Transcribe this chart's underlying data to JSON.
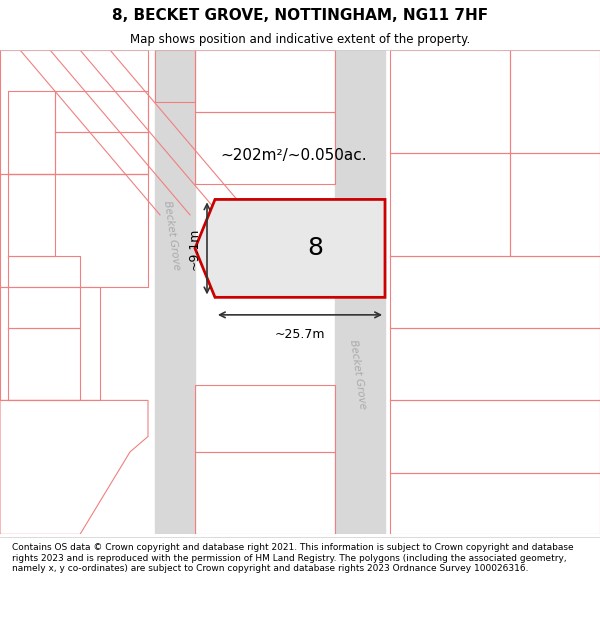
{
  "title": "8, BECKET GROVE, NOTTINGHAM, NG11 7HF",
  "subtitle": "Map shows position and indicative extent of the property.",
  "footer": "Contains OS data © Crown copyright and database right 2021. This information is subject to Crown copyright and database rights 2023 and is reproduced with the permission of HM Land Registry. The polygons (including the associated geometry, namely x, y co-ordinates) are subject to Crown copyright and database rights 2023 Ordnance Survey 100026316.",
  "bg_color": "#f5f5f5",
  "map_bg": "#ffffff",
  "road_color": "#d8d8d8",
  "pink_line_color": "#f08080",
  "red_outline_color": "#cc0000",
  "property_fill": "#e8e8e8",
  "area_text": "~202m²/~0.050ac.",
  "width_text": "~25.7m",
  "height_text": "~9.1m",
  "number_text": "8"
}
